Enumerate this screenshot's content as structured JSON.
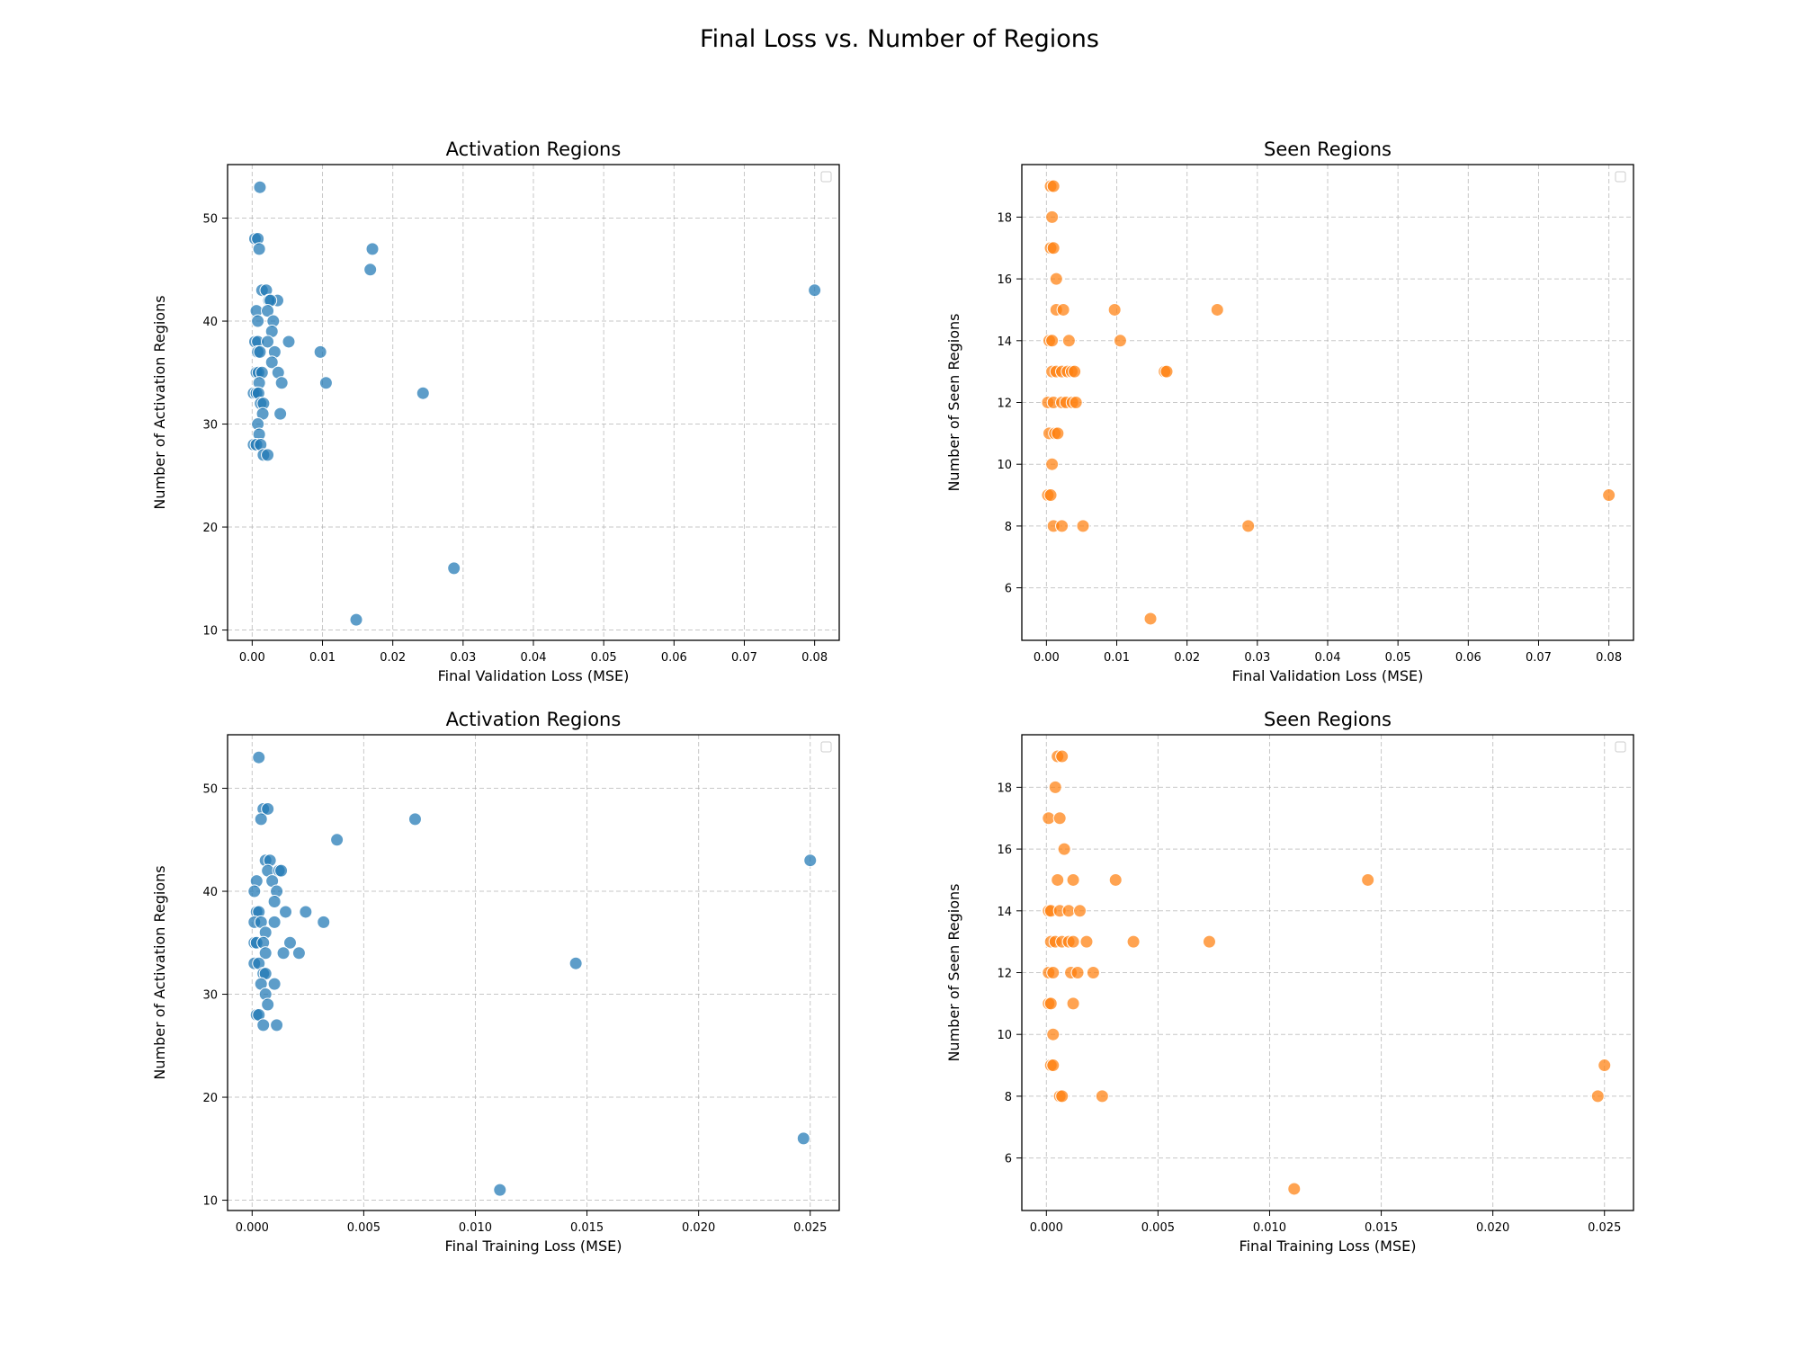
{
  "figure": {
    "title": "Final Loss vs. Number of Regions"
  },
  "chart_data": [
    {
      "type": "scatter",
      "title": "Activation Regions",
      "xlabel": "Final Validation Loss (MSE)",
      "ylabel": "Number of Activation Regions",
      "xlim": [
        -0.0035,
        0.0835
      ],
      "ylim": [
        9,
        55.2
      ],
      "xticks": [
        0.0,
        0.01,
        0.02,
        0.03,
        0.04,
        0.05,
        0.06,
        0.07,
        0.08
      ],
      "xtick_labels": [
        "0.00",
        "0.01",
        "0.02",
        "0.03",
        "0.04",
        "0.05",
        "0.06",
        "0.07",
        "0.08"
      ],
      "yticks": [
        10,
        20,
        30,
        40,
        50
      ],
      "ytick_labels": [
        "10",
        "20",
        "30",
        "40",
        "50"
      ],
      "grid": true,
      "legend": "top-right (empty)",
      "color": "#1f77b4",
      "points": [
        [
          0.0011,
          53
        ],
        [
          0.0004,
          48
        ],
        [
          0.0008,
          48
        ],
        [
          0.001,
          47
        ],
        [
          0.0014,
          43
        ],
        [
          0.002,
          43
        ],
        [
          0.0036,
          42
        ],
        [
          0.0024,
          42
        ],
        [
          0.0026,
          42
        ],
        [
          0.0006,
          41
        ],
        [
          0.0022,
          41
        ],
        [
          0.0008,
          40
        ],
        [
          0.003,
          40
        ],
        [
          0.0028,
          39
        ],
        [
          0.0004,
          38
        ],
        [
          0.0008,
          38
        ],
        [
          0.0022,
          38
        ],
        [
          0.0052,
          38
        ],
        [
          0.0008,
          37
        ],
        [
          0.0011,
          37
        ],
        [
          0.0032,
          37
        ],
        [
          0.0097,
          37
        ],
        [
          0.0028,
          36
        ],
        [
          0.0006,
          35
        ],
        [
          0.0009,
          35
        ],
        [
          0.0014,
          35
        ],
        [
          0.0037,
          35
        ],
        [
          0.001,
          34
        ],
        [
          0.0042,
          34
        ],
        [
          0.0105,
          34
        ],
        [
          0.0002,
          33
        ],
        [
          0.0006,
          33
        ],
        [
          0.0009,
          33
        ],
        [
          0.0243,
          33
        ],
        [
          0.0012,
          32
        ],
        [
          0.0016,
          32
        ],
        [
          0.0015,
          31
        ],
        [
          0.004,
          31
        ],
        [
          0.0008,
          30
        ],
        [
          0.001,
          29
        ],
        [
          0.0002,
          28
        ],
        [
          0.0006,
          28
        ],
        [
          0.0012,
          28
        ],
        [
          0.0016,
          27
        ],
        [
          0.0022,
          27
        ],
        [
          0.0287,
          16
        ],
        [
          0.0148,
          11
        ],
        [
          0.0168,
          45
        ],
        [
          0.0171,
          47
        ],
        [
          0.08,
          43
        ]
      ]
    },
    {
      "type": "scatter",
      "title": "Seen Regions",
      "xlabel": "Final Validation Loss (MSE)",
      "ylabel": "Number of Seen Regions",
      "xlim": [
        -0.0035,
        0.0835
      ],
      "ylim": [
        4.3,
        19.7
      ],
      "xticks": [
        0.0,
        0.01,
        0.02,
        0.03,
        0.04,
        0.05,
        0.06,
        0.07,
        0.08
      ],
      "xtick_labels": [
        "0.00",
        "0.01",
        "0.02",
        "0.03",
        "0.04",
        "0.05",
        "0.06",
        "0.07",
        "0.08"
      ],
      "yticks": [
        6,
        8,
        10,
        12,
        14,
        16,
        18
      ],
      "ytick_labels": [
        "6",
        "8",
        "10",
        "12",
        "14",
        "16",
        "18"
      ],
      "grid": true,
      "legend": "top-right (empty)",
      "color": "#ff7f0e",
      "points": [
        [
          0.0006,
          19
        ],
        [
          0.001,
          19
        ],
        [
          0.0008,
          18
        ],
        [
          0.0006,
          17
        ],
        [
          0.001,
          17
        ],
        [
          0.0014,
          16
        ],
        [
          0.0014,
          15
        ],
        [
          0.0024,
          15
        ],
        [
          0.0097,
          15
        ],
        [
          0.0243,
          15
        ],
        [
          0.0004,
          14
        ],
        [
          0.0008,
          14
        ],
        [
          0.0032,
          14
        ],
        [
          0.0105,
          14
        ],
        [
          0.0008,
          13
        ],
        [
          0.0014,
          13
        ],
        [
          0.0022,
          13
        ],
        [
          0.003,
          13
        ],
        [
          0.0036,
          13
        ],
        [
          0.004,
          13
        ],
        [
          0.0168,
          13
        ],
        [
          0.0171,
          13
        ],
        [
          0.0002,
          12
        ],
        [
          0.001,
          12
        ],
        [
          0.0022,
          12
        ],
        [
          0.0028,
          12
        ],
        [
          0.0037,
          12
        ],
        [
          0.0042,
          12
        ],
        [
          0.0004,
          11
        ],
        [
          0.0012,
          11
        ],
        [
          0.0016,
          11
        ],
        [
          0.0008,
          10
        ],
        [
          0.0002,
          9
        ],
        [
          0.0006,
          9
        ],
        [
          0.08,
          9
        ],
        [
          0.001,
          8
        ],
        [
          0.0022,
          8
        ],
        [
          0.0052,
          8
        ],
        [
          0.0287,
          8
        ],
        [
          0.0148,
          5
        ]
      ]
    },
    {
      "type": "scatter",
      "title": "Activation Regions",
      "xlabel": "Final Training Loss (MSE)",
      "ylabel": "Number of Activation Regions",
      "xlim": [
        -0.0011,
        0.0263
      ],
      "ylim": [
        9,
        55.2
      ],
      "xticks": [
        0.0,
        0.005,
        0.01,
        0.015,
        0.02,
        0.025
      ],
      "xtick_labels": [
        "0.000",
        "0.005",
        "0.010",
        "0.015",
        "0.020",
        "0.025"
      ],
      "yticks": [
        10,
        20,
        30,
        40,
        50
      ],
      "ytick_labels": [
        "10",
        "20",
        "30",
        "40",
        "50"
      ],
      "grid": true,
      "legend": "top-right (empty)",
      "color": "#1f77b4",
      "points": [
        [
          0.0003,
          53
        ],
        [
          0.0005,
          48
        ],
        [
          0.0007,
          48
        ],
        [
          0.0004,
          47
        ],
        [
          0.0038,
          45
        ],
        [
          0.0073,
          47
        ],
        [
          0.025,
          43
        ],
        [
          0.0006,
          43
        ],
        [
          0.0008,
          43
        ],
        [
          0.0007,
          42
        ],
        [
          0.0012,
          42
        ],
        [
          0.0013,
          42
        ],
        [
          0.0002,
          41
        ],
        [
          0.0009,
          41
        ],
        [
          0.0001,
          40
        ],
        [
          0.0011,
          40
        ],
        [
          0.001,
          39
        ],
        [
          0.0002,
          38
        ],
        [
          0.0003,
          38
        ],
        [
          0.0015,
          38
        ],
        [
          0.0024,
          38
        ],
        [
          0.0001,
          37
        ],
        [
          0.0004,
          37
        ],
        [
          0.001,
          37
        ],
        [
          0.0032,
          37
        ],
        [
          0.0006,
          36
        ],
        [
          0.0001,
          35
        ],
        [
          0.0002,
          35
        ],
        [
          0.0005,
          35
        ],
        [
          0.0017,
          35
        ],
        [
          0.0006,
          34
        ],
        [
          0.0014,
          34
        ],
        [
          0.0021,
          34
        ],
        [
          0.0001,
          33
        ],
        [
          0.0003,
          33
        ],
        [
          0.0145,
          33
        ],
        [
          0.0005,
          32
        ],
        [
          0.0006,
          32
        ],
        [
          0.0004,
          31
        ],
        [
          0.001,
          31
        ],
        [
          0.0006,
          30
        ],
        [
          0.0007,
          29
        ],
        [
          0.0002,
          28
        ],
        [
          0.0003,
          28
        ],
        [
          0.0005,
          27
        ],
        [
          0.0011,
          27
        ],
        [
          0.0247,
          16
        ],
        [
          0.0111,
          11
        ]
      ]
    },
    {
      "type": "scatter",
      "title": "Seen Regions",
      "xlabel": "Final Training Loss (MSE)",
      "ylabel": "Number of Seen Regions",
      "xlim": [
        -0.0011,
        0.0263
      ],
      "ylim": [
        4.3,
        19.7
      ],
      "xticks": [
        0.0,
        0.005,
        0.01,
        0.015,
        0.02,
        0.025
      ],
      "xtick_labels": [
        "0.000",
        "0.005",
        "0.010",
        "0.015",
        "0.020",
        "0.025"
      ],
      "yticks": [
        6,
        8,
        10,
        12,
        14,
        16,
        18
      ],
      "ytick_labels": [
        "6",
        "8",
        "10",
        "12",
        "14",
        "16",
        "18"
      ],
      "grid": true,
      "legend": "top-right (empty)",
      "color": "#ff7f0e",
      "points": [
        [
          0.0005,
          19
        ],
        [
          0.0007,
          19
        ],
        [
          0.0004,
          18
        ],
        [
          0.0001,
          17
        ],
        [
          0.0006,
          17
        ],
        [
          0.0008,
          16
        ],
        [
          0.0005,
          15
        ],
        [
          0.0012,
          15
        ],
        [
          0.0031,
          15
        ],
        [
          0.0144,
          15
        ],
        [
          0.0001,
          14
        ],
        [
          0.0002,
          14
        ],
        [
          0.0006,
          14
        ],
        [
          0.001,
          14
        ],
        [
          0.0015,
          14
        ],
        [
          0.0002,
          13
        ],
        [
          0.0004,
          13
        ],
        [
          0.0007,
          13
        ],
        [
          0.001,
          13
        ],
        [
          0.0012,
          13
        ],
        [
          0.0018,
          13
        ],
        [
          0.0039,
          13
        ],
        [
          0.0073,
          13
        ],
        [
          0.0001,
          12
        ],
        [
          0.0003,
          12
        ],
        [
          0.0011,
          12
        ],
        [
          0.0014,
          12
        ],
        [
          0.0021,
          12
        ],
        [
          0.0001,
          11
        ],
        [
          0.0002,
          11
        ],
        [
          0.0012,
          11
        ],
        [
          0.0003,
          10
        ],
        [
          0.0002,
          9
        ],
        [
          0.0003,
          9
        ],
        [
          0.025,
          9
        ],
        [
          0.0006,
          8
        ],
        [
          0.0007,
          8
        ],
        [
          0.0025,
          8
        ],
        [
          0.0247,
          8
        ],
        [
          0.0111,
          5
        ]
      ]
    }
  ]
}
